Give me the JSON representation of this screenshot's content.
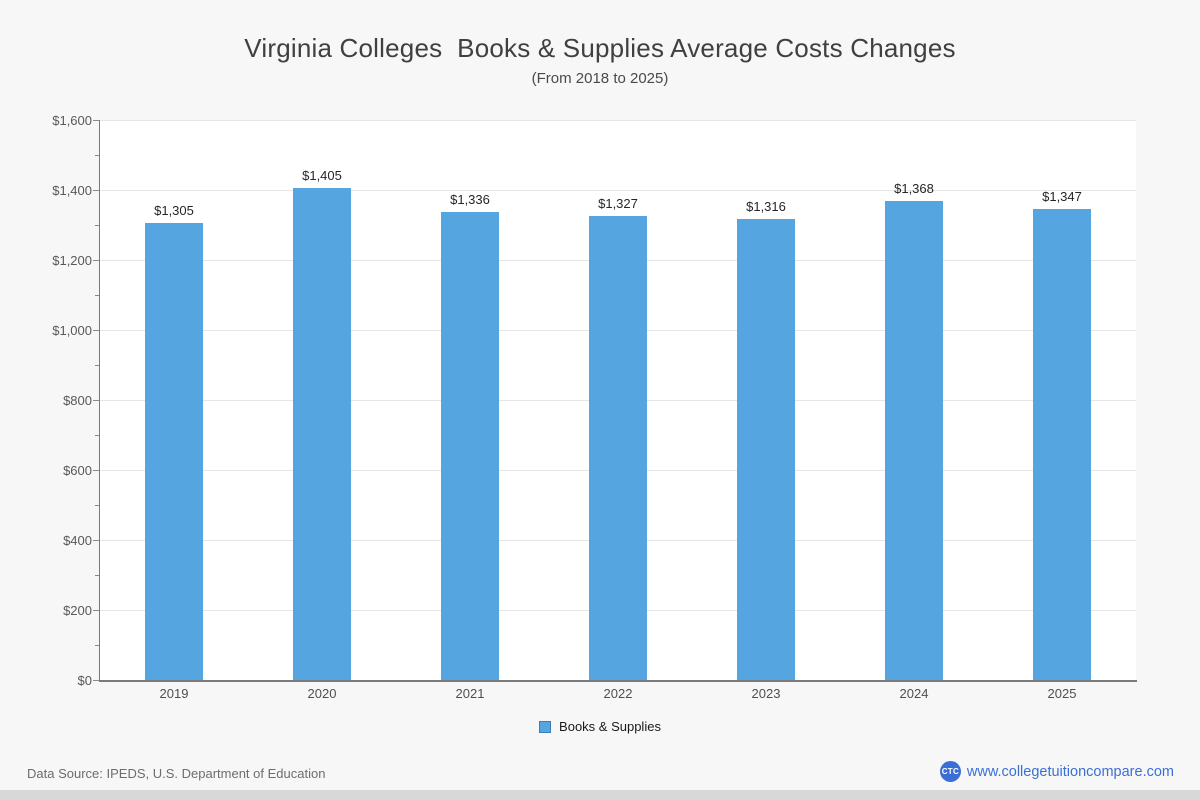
{
  "page": {
    "title": "Virginia Colleges  Books & Supplies Average Costs Changes",
    "subtitle": "(From 2018 to 2025)"
  },
  "chart_data": {
    "type": "bar",
    "title": "Virginia Colleges  Books & Supplies Average Costs Changes",
    "subtitle": "(From 2018 to 2025)",
    "categories": [
      "2019",
      "2020",
      "2021",
      "2022",
      "2023",
      "2024",
      "2025"
    ],
    "series": [
      {
        "name": "Books & Supplies",
        "values": [
          1305,
          1405,
          1336,
          1327,
          1316,
          1368,
          1347
        ],
        "color": "#55a5e0"
      }
    ],
    "value_labels": [
      "$1,305",
      "$1,405",
      "$1,336",
      "$1,327",
      "$1,316",
      "$1,368",
      "$1,347"
    ],
    "xlabel": "",
    "ylabel": "",
    "ylim": [
      0,
      1600
    ],
    "ytick_interval": 200,
    "minor_tick_interval": 100,
    "yticks": [
      {
        "value": 0,
        "label": "$0"
      },
      {
        "value": 200,
        "label": "$200"
      },
      {
        "value": 400,
        "label": "$400"
      },
      {
        "value": 600,
        "label": "$600"
      },
      {
        "value": 800,
        "label": "$800"
      },
      {
        "value": 1000,
        "label": "$1,000"
      },
      {
        "value": 1200,
        "label": "$1,200"
      },
      {
        "value": 1400,
        "label": "$1,400"
      },
      {
        "value": 1600,
        "label": "$1,600"
      }
    ],
    "grid": true,
    "legend_position": "bottom"
  },
  "legend": {
    "items": [
      {
        "label": "Books & Supplies",
        "color": "#55a5e0"
      }
    ]
  },
  "footer": {
    "source": "Data Source: IPEDS, U.S. Department of Education",
    "logo_text": "CTC",
    "website": "www.collegetuitioncompare.com"
  },
  "colors": {
    "background": "#f7f7f7",
    "plot_background": "#ffffff",
    "bar": "#55a5e0",
    "gridline": "#e6e6e6",
    "axis": "#7a7a7a",
    "link": "#3b6fd8",
    "bottom_strip": "#d8d8d8"
  }
}
